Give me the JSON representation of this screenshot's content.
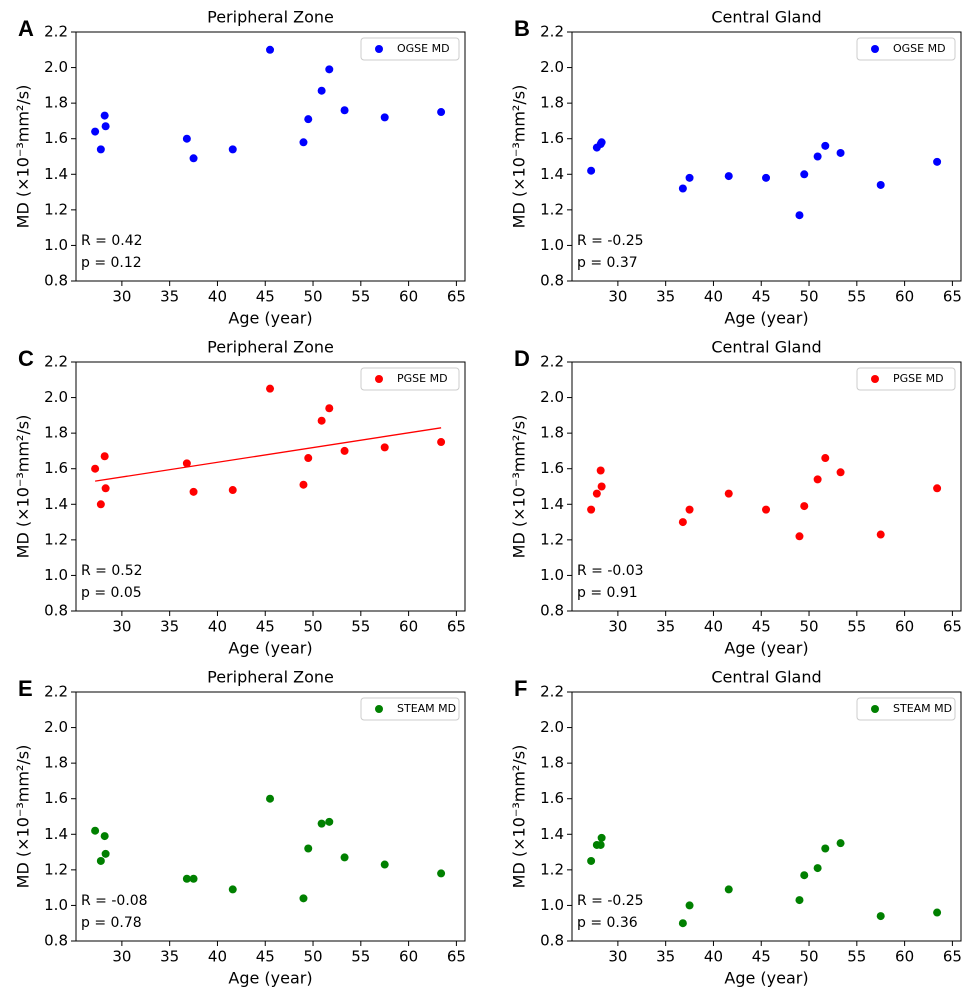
{
  "chart_data": [
    {
      "type": "scatter",
      "panel_label": "A",
      "title": "Peripheral Zone",
      "xlabel": "Age (year)",
      "ylabel": "MD (×10⁻³mm²/s)",
      "x": [
        27.2,
        27.8,
        28.2,
        28.3,
        36.8,
        37.5,
        41.6,
        45.5,
        49.0,
        49.5,
        50.9,
        51.7,
        53.3,
        57.5,
        63.4
      ],
      "series": [
        {
          "name": "OGSE MD",
          "color": "#0000ff",
          "values": [
            1.64,
            1.54,
            1.73,
            1.67,
            1.6,
            1.49,
            1.54,
            2.1,
            1.58,
            1.71,
            1.87,
            1.99,
            1.76,
            1.72,
            1.75
          ]
        }
      ],
      "annotations": [
        "R = 0.42",
        "p = 0.12"
      ],
      "xlim": [
        25.2,
        65.9
      ],
      "ylim": [
        0.8,
        2.2
      ],
      "xticks": [
        30,
        35,
        40,
        45,
        50,
        55,
        60,
        65
      ],
      "yticks": [
        0.8,
        {
          "value": 1,
          "label": "1.0"
        },
        1.2,
        1.4,
        1.6,
        1.8,
        {
          "value": 2,
          "label": "2.0"
        },
        2.2
      ],
      "legend": "upper right"
    },
    {
      "type": "scatter",
      "panel_label": "B",
      "title": "Central Gland",
      "xlabel": "Age (year)",
      "ylabel": "MD (×10⁻³mm²/s)",
      "x": [
        27.2,
        27.8,
        28.2,
        28.3,
        36.8,
        37.5,
        41.6,
        45.5,
        49.0,
        49.5,
        50.9,
        51.7,
        53.3,
        57.5,
        63.4
      ],
      "series": [
        {
          "name": "OGSE MD",
          "color": "#0000ff",
          "values": [
            1.42,
            1.55,
            1.57,
            1.58,
            1.32,
            1.38,
            1.39,
            1.38,
            1.17,
            1.4,
            1.5,
            1.56,
            1.52,
            1.34,
            1.47
          ]
        }
      ],
      "annotations": [
        "R = -0.25",
        "p = 0.37"
      ],
      "xlim": [
        25.2,
        65.9
      ],
      "ylim": [
        0.8,
        2.2
      ],
      "xticks": [
        30,
        35,
        40,
        45,
        50,
        55,
        60,
        65
      ],
      "yticks": [
        0.8,
        {
          "value": 1,
          "label": "1.0"
        },
        1.2,
        1.4,
        1.6,
        1.8,
        {
          "value": 2,
          "label": "2.0"
        },
        2.2
      ],
      "legend": "upper right"
    },
    {
      "type": "scatter",
      "panel_label": "C",
      "title": "Peripheral Zone",
      "xlabel": "Age (year)",
      "ylabel": "MD (×10⁻³mm²/s)",
      "x": [
        27.2,
        27.8,
        28.2,
        28.3,
        36.8,
        37.5,
        41.6,
        45.5,
        49.0,
        49.5,
        50.9,
        51.7,
        53.3,
        57.5,
        63.4
      ],
      "series": [
        {
          "name": "PGSE MD",
          "color": "#ff0000",
          "values": [
            1.6,
            1.4,
            1.67,
            1.49,
            1.63,
            1.47,
            1.48,
            2.05,
            1.51,
            1.66,
            1.87,
            1.94,
            1.7,
            1.72,
            1.75
          ]
        }
      ],
      "fit": {
        "x": [
          27.2,
          63.4
        ],
        "y": [
          1.53,
          1.83
        ],
        "color": "#ff0000"
      },
      "annotations": [
        "R = 0.52",
        "p = 0.05"
      ],
      "xlim": [
        25.2,
        65.9
      ],
      "ylim": [
        0.8,
        2.2
      ],
      "xticks": [
        30,
        35,
        40,
        45,
        50,
        55,
        60,
        65
      ],
      "yticks": [
        0.8,
        {
          "value": 1,
          "label": "1.0"
        },
        1.2,
        1.4,
        1.6,
        1.8,
        {
          "value": 2,
          "label": "2.0"
        },
        2.2
      ],
      "legend": "upper right"
    },
    {
      "type": "scatter",
      "panel_label": "D",
      "title": "Central Gland",
      "xlabel": "Age (year)",
      "ylabel": "MD (×10⁻³mm²/s)",
      "x": [
        27.2,
        27.8,
        28.2,
        28.3,
        36.8,
        37.5,
        41.6,
        45.5,
        49.0,
        49.5,
        50.9,
        51.7,
        53.3,
        57.5,
        63.4
      ],
      "series": [
        {
          "name": "PGSE MD",
          "color": "#ff0000",
          "values": [
            1.37,
            1.46,
            1.59,
            1.5,
            1.3,
            1.37,
            1.46,
            1.37,
            1.22,
            1.39,
            1.54,
            1.66,
            1.58,
            1.23,
            1.49
          ]
        }
      ],
      "annotations": [
        "R = -0.03",
        "p = 0.91"
      ],
      "xlim": [
        25.2,
        65.9
      ],
      "ylim": [
        0.8,
        2.2
      ],
      "xticks": [
        30,
        35,
        40,
        45,
        50,
        55,
        60,
        65
      ],
      "yticks": [
        0.8,
        {
          "value": 1,
          "label": "1.0"
        },
        1.2,
        1.4,
        1.6,
        1.8,
        {
          "value": 2,
          "label": "2.0"
        },
        2.2
      ],
      "legend": "upper right"
    },
    {
      "type": "scatter",
      "panel_label": "E",
      "title": "Peripheral Zone",
      "xlabel": "Age (year)",
      "ylabel": "MD (×10⁻³mm²/s)",
      "x": [
        27.2,
        27.8,
        28.2,
        28.3,
        36.8,
        37.5,
        41.6,
        45.5,
        49.0,
        49.5,
        50.9,
        51.7,
        53.3,
        57.5,
        63.4
      ],
      "series": [
        {
          "name": "STEAM MD",
          "color": "#008000",
          "values": [
            1.42,
            1.25,
            1.39,
            1.29,
            1.15,
            1.15,
            1.09,
            1.6,
            1.04,
            1.32,
            1.46,
            1.47,
            1.27,
            1.23,
            1.18
          ]
        }
      ],
      "annotations": [
        "R = -0.08",
        "p = 0.78"
      ],
      "xlim": [
        25.2,
        65.9
      ],
      "ylim": [
        0.8,
        2.2
      ],
      "xticks": [
        30,
        35,
        40,
        45,
        50,
        55,
        60,
        65
      ],
      "yticks": [
        0.8,
        {
          "value": 1,
          "label": "1.0"
        },
        1.2,
        1.4,
        1.6,
        1.8,
        {
          "value": 2,
          "label": "2.0"
        },
        2.2
      ],
      "legend": "upper right"
    },
    {
      "type": "scatter",
      "panel_label": "F",
      "title": "Central Gland",
      "xlabel": "Age (year)",
      "ylabel": "MD (×10⁻³mm²/s)",
      "x": [
        27.2,
        27.8,
        28.2,
        28.3,
        36.8,
        37.5,
        41.6,
        45.5,
        49.0,
        49.5,
        50.9,
        51.7,
        53.3,
        57.5,
        63.4
      ],
      "series": [
        {
          "name": "STEAM MD",
          "color": "#008000",
          "values": [
            1.25,
            1.34,
            1.34,
            1.38,
            0.9,
            1.0,
            1.09,
            null,
            1.03,
            1.17,
            1.21,
            1.32,
            1.35,
            0.94,
            0.96
          ]
        }
      ],
      "annotations": [
        "R = -0.25",
        "p = 0.36"
      ],
      "xlim": [
        25.2,
        65.9
      ],
      "ylim": [
        0.8,
        2.2
      ],
      "xticks": [
        30,
        35,
        40,
        45,
        50,
        55,
        60,
        65
      ],
      "yticks": [
        0.8,
        {
          "value": 1,
          "label": "1.0"
        },
        1.2,
        1.4,
        1.6,
        1.8,
        {
          "value": 2,
          "label": "2.0"
        },
        2.2
      ],
      "legend": "upper right"
    }
  ]
}
